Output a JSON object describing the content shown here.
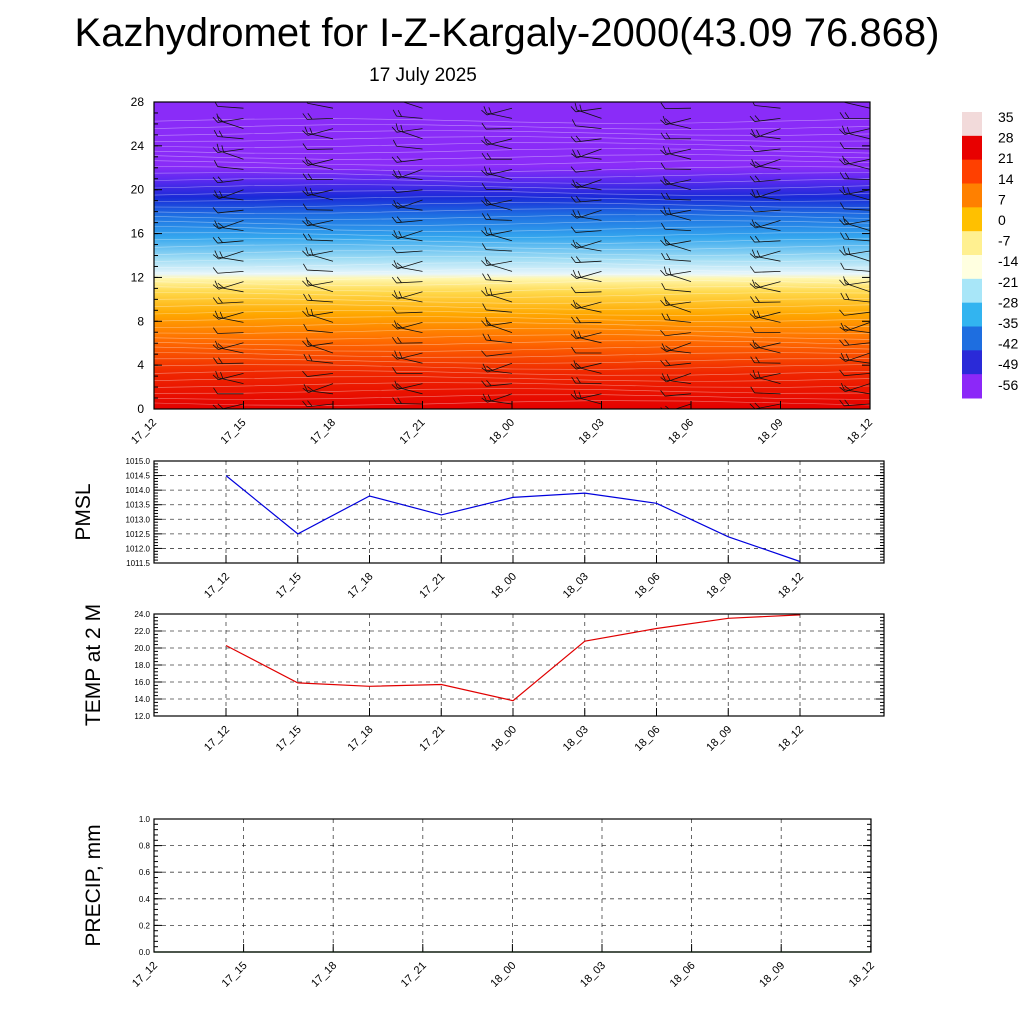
{
  "title": "Kazhydromet for I-Z-Kargaly-2000(43.09 76.868)",
  "subtitle": "17 July 2025",
  "colors": {
    "pmsl_line": "#0000dd",
    "temp_line": "#e00000",
    "precip_line": "#006400"
  },
  "chart_data": [
    {
      "type": "heatmap",
      "name": "temperature-cross-section",
      "x_ticks": [
        "17_12",
        "17_15",
        "17_18",
        "17_21",
        "18_00",
        "18_03",
        "18_06",
        "18_09",
        "18_12"
      ],
      "y_ticks": [
        "0",
        "4",
        "8",
        "12",
        "16",
        "20",
        "24",
        "28"
      ],
      "ylim": [
        0,
        28
      ],
      "colorbar_labels": [
        "35",
        "28",
        "21",
        "14",
        "7",
        "0",
        "-7",
        "-14",
        "-21",
        "-28",
        "-35",
        "-42",
        "-49",
        "-56"
      ],
      "colorbar_range": [
        -60,
        38
      ],
      "colorbar_colors": [
        "#f2dada",
        "#e80000",
        "#ff4000",
        "#ff8000",
        "#ffc000",
        "#fff090",
        "#ffffe0",
        "#a8e6f8",
        "#32b4f0",
        "#1e6ee0",
        "#2a2ad8",
        "#8c28f8"
      ],
      "wind_barbs": true
    },
    {
      "type": "line",
      "name": "pmsl",
      "ylabel": "PMSL",
      "x": [
        "17_12",
        "17_15",
        "17_18",
        "17_21",
        "18_00",
        "18_03",
        "18_06",
        "18_09",
        "18_12"
      ],
      "values": [
        1014.5,
        1012.5,
        1013.8,
        1013.15,
        1013.75,
        1013.9,
        1013.55,
        1012.4,
        1011.55
      ],
      "ylim": [
        1011.5,
        1015.0
      ],
      "y_ticks": [
        "1011.5",
        "1012.0",
        "1012.5",
        "1013.0",
        "1013.5",
        "1014.0",
        "1014.5",
        "1015.0"
      ],
      "grid": true
    },
    {
      "type": "line",
      "name": "temp-2m",
      "ylabel": "TEMP at 2 M",
      "x": [
        "17_12",
        "17_15",
        "17_18",
        "17_21",
        "18_00",
        "18_03",
        "18_06",
        "18_09",
        "18_12"
      ],
      "values": [
        20.3,
        15.9,
        15.5,
        15.7,
        13.8,
        20.8,
        22.3,
        23.5,
        23.9
      ],
      "ylim": [
        12.0,
        24.0
      ],
      "y_ticks": [
        "12.0",
        "14.0",
        "16.0",
        "18.0",
        "20.0",
        "22.0",
        "24.0"
      ],
      "grid": true
    },
    {
      "type": "line",
      "name": "precip",
      "ylabel": "PRECIP, mm",
      "x_ticks": [
        "17_12",
        "17_15",
        "17_18",
        "17_21",
        "18_00",
        "18_03",
        "18_06",
        "18_09",
        "18_12"
      ],
      "values": [
        0,
        0,
        0,
        0,
        0,
        0,
        0,
        0,
        0
      ],
      "ylim": [
        0.0,
        1.0
      ],
      "y_ticks": [
        "0.0",
        "0.2",
        "0.4",
        "0.6",
        "0.8",
        "1.0"
      ],
      "grid": true
    }
  ]
}
